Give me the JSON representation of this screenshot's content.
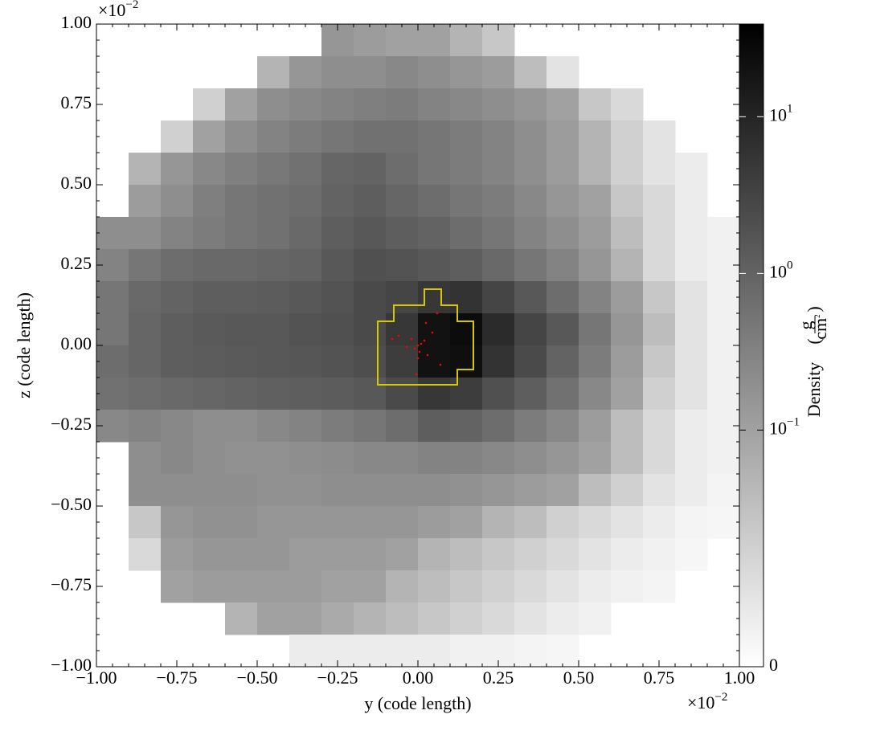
{
  "chart_data": {
    "type": "heatmap",
    "xlabel": "y  (code length)",
    "ylabel": "z  (code length)",
    "x_offset": "×10",
    "x_offset_exp": "−2",
    "y_offset": "×10",
    "y_offset_exp": "−2",
    "xlim": [
      -1,
      1
    ],
    "ylim": [
      -1,
      1
    ],
    "xticks": [
      {
        "value": -1,
        "label": "−1.00"
      },
      {
        "value": -0.75,
        "label": "−0.75"
      },
      {
        "value": -0.5,
        "label": "−0.50"
      },
      {
        "value": -0.25,
        "label": "−0.25"
      },
      {
        "value": 0,
        "label": "0.00"
      },
      {
        "value": 0.25,
        "label": "0.25"
      },
      {
        "value": 0.5,
        "label": "0.50"
      },
      {
        "value": 0.75,
        "label": "0.75"
      },
      {
        "value": 1,
        "label": "1.00"
      }
    ],
    "yticks": [
      {
        "value": -1,
        "label": "−1.00"
      },
      {
        "value": -0.75,
        "label": "−0.75"
      },
      {
        "value": -0.5,
        "label": "−0.50"
      },
      {
        "value": -0.25,
        "label": "−0.25"
      },
      {
        "value": 0,
        "label": "0.00"
      },
      {
        "value": 0.25,
        "label": "0.25"
      },
      {
        "value": 0.5,
        "label": "0.50"
      },
      {
        "value": 0.75,
        "label": "0.75"
      },
      {
        "value": 1,
        "label": "1.00"
      }
    ],
    "minor_tick_step": 0.05,
    "x": [
      -0.95,
      -0.85,
      -0.75,
      -0.65,
      -0.55,
      -0.45,
      -0.35,
      -0.25,
      -0.15,
      -0.05,
      0.05,
      0.15,
      0.25,
      0.35,
      0.45,
      0.55,
      0.65,
      0.75,
      0.85,
      0.95
    ],
    "y": [
      0.95,
      0.85,
      0.75,
      0.65,
      0.55,
      0.45,
      0.35,
      0.25,
      0.15,
      0.05,
      -0.05,
      -0.15,
      -0.25,
      -0.35,
      -0.45,
      -0.55,
      -0.65,
      -0.75,
      -0.85,
      -0.95
    ],
    "z_values": [
      [
        null,
        null,
        null,
        null,
        null,
        null,
        null,
        0.15,
        0.12,
        0.1,
        0.1,
        0.08,
        0.06,
        null,
        null,
        null,
        null,
        null,
        null,
        null
      ],
      [
        null,
        null,
        null,
        null,
        null,
        0.08,
        0.15,
        0.2,
        0.2,
        0.25,
        0.2,
        0.15,
        0.12,
        0.07,
        0.03,
        null,
        null,
        null,
        null,
        null
      ],
      [
        null,
        null,
        null,
        0.05,
        0.1,
        0.2,
        0.25,
        0.3,
        0.35,
        0.4,
        0.3,
        0.25,
        0.2,
        0.15,
        0.1,
        0.06,
        0.04,
        null,
        null,
        null
      ],
      [
        null,
        null,
        0.05,
        0.1,
        0.2,
        0.3,
        0.4,
        0.5,
        0.6,
        0.6,
        0.5,
        0.4,
        0.3,
        0.2,
        0.12,
        0.08,
        0.05,
        0.03,
        null,
        null
      ],
      [
        null,
        0.08,
        0.15,
        0.25,
        0.35,
        0.45,
        0.6,
        0.9,
        1.0,
        0.7,
        0.5,
        0.4,
        0.3,
        0.2,
        0.12,
        0.08,
        0.05,
        0.03,
        0.02,
        null
      ],
      [
        null,
        0.12,
        0.2,
        0.35,
        0.5,
        0.6,
        0.7,
        1.0,
        1.2,
        0.9,
        0.7,
        0.5,
        0.4,
        0.25,
        0.15,
        0.1,
        0.06,
        0.04,
        0.02,
        null
      ],
      [
        0.2,
        0.2,
        0.3,
        0.4,
        0.5,
        0.6,
        0.8,
        1.2,
        1.5,
        1.2,
        1.0,
        0.7,
        0.5,
        0.3,
        0.2,
        0.12,
        0.07,
        0.04,
        0.02,
        0.015
      ],
      [
        0.3,
        0.5,
        0.7,
        0.8,
        0.8,
        0.9,
        1.0,
        1.5,
        2.0,
        1.8,
        1.5,
        1.2,
        0.8,
        0.5,
        0.3,
        0.15,
        0.08,
        0.04,
        0.02,
        0.015
      ],
      [
        0.5,
        0.8,
        1.0,
        1.2,
        1.2,
        1.3,
        1.5,
        1.8,
        2.5,
        3,
        5,
        6,
        3,
        1.5,
        0.7,
        0.3,
        0.12,
        0.06,
        0.03,
        0.015
      ],
      [
        0.5,
        0.9,
        1.2,
        1.4,
        1.5,
        1.5,
        1.8,
        2,
        2.5,
        5,
        20,
        25,
        8,
        3,
        1.5,
        0.5,
        0.15,
        0.07,
        0.03,
        0.015
      ],
      [
        0.7,
        0.9,
        1.2,
        1.3,
        1.4,
        1.5,
        1.6,
        1.8,
        2.2,
        4,
        20,
        22,
        6,
        2.5,
        1.0,
        0.4,
        0.12,
        0.06,
        0.03,
        0.015
      ],
      [
        0.6,
        0.7,
        0.8,
        0.9,
        1.0,
        1.1,
        1.2,
        1.3,
        1.5,
        2.5,
        5,
        4,
        2.0,
        1.2,
        0.6,
        0.25,
        0.1,
        0.05,
        0.03,
        0.015
      ],
      [
        0.25,
        0.3,
        0.25,
        0.2,
        0.2,
        0.25,
        0.3,
        0.4,
        0.5,
        0.7,
        1.2,
        1.0,
        0.7,
        0.4,
        0.25,
        0.12,
        0.07,
        0.04,
        0.02,
        0.015
      ],
      [
        null,
        0.2,
        0.25,
        0.2,
        0.18,
        0.18,
        0.2,
        0.22,
        0.25,
        0.25,
        0.3,
        0.3,
        0.25,
        0.2,
        0.15,
        0.1,
        0.07,
        0.04,
        0.02,
        0.015
      ],
      [
        null,
        0.2,
        0.2,
        0.2,
        0.2,
        0.18,
        0.18,
        0.2,
        0.2,
        0.2,
        0.2,
        0.18,
        0.15,
        0.12,
        0.1,
        0.07,
        0.05,
        0.03,
        0.02,
        0.012
      ],
      [
        null,
        0.06,
        0.15,
        0.18,
        0.18,
        0.15,
        0.15,
        0.15,
        0.15,
        0.15,
        0.12,
        0.1,
        0.08,
        0.07,
        0.05,
        0.04,
        0.03,
        0.02,
        0.012,
        0.01
      ],
      [
        null,
        0.04,
        0.12,
        0.15,
        0.15,
        0.15,
        0.12,
        0.12,
        0.12,
        0.1,
        0.08,
        0.07,
        0.06,
        0.05,
        0.04,
        0.03,
        0.02,
        0.015,
        0.01,
        null
      ],
      [
        null,
        null,
        0.1,
        0.12,
        0.12,
        0.12,
        0.12,
        0.1,
        0.1,
        0.08,
        0.07,
        0.06,
        0.05,
        0.04,
        0.03,
        0.02,
        0.015,
        0.012,
        null,
        null
      ],
      [
        null,
        null,
        null,
        null,
        0.08,
        0.1,
        0.1,
        0.09,
        0.08,
        0.07,
        0.06,
        0.05,
        0.04,
        0.03,
        0.02,
        0.015,
        null,
        null,
        null,
        null
      ],
      [
        null,
        null,
        null,
        null,
        null,
        null,
        0.02,
        0.02,
        0.02,
        0.02,
        0.02,
        0.015,
        0.015,
        0.012,
        0.01,
        null,
        null,
        null,
        null,
        null
      ]
    ],
    "colorbar": {
      "label": "Density",
      "unit_num": "g",
      "unit_den": "cm",
      "unit_exp": "2",
      "scale": "symlog",
      "clim": [
        0,
        39
      ],
      "linthresh": 0.1,
      "linscale": 1.51,
      "cmap": "gray_r",
      "ticks": [
        0,
        {
          "value": 0.1,
          "label": "10",
          "exp": "−1"
        },
        {
          "value": 1,
          "label": "10",
          "exp": "0"
        },
        {
          "value": 10,
          "label": "10",
          "exp": "1"
        }
      ]
    },
    "contour": {
      "color": "#d4c800",
      "y": [
        -0.125,
        -0.075,
        -0.075,
        0.02,
        0.02,
        0.0725,
        0.0725,
        0.1225,
        0.1225,
        0.1725,
        0.1725,
        0.1225,
        0.1225,
        -0.125
      ],
      "z": [
        0.075,
        0.075,
        0.125,
        0.125,
        0.175,
        0.175,
        0.125,
        0.125,
        0.075,
        0.075,
        -0.075,
        -0.075,
        -0.1225,
        -0.1225
      ]
    },
    "particles": {
      "color": "#ff0000",
      "y": [
        0.0,
        0.01,
        -0.01,
        0.02,
        -0.02,
        0.005,
        0.03,
        -0.035,
        0.045,
        -0.06,
        0.07,
        -0.08,
        0.025,
        -0.005,
        0.06,
        0.0
      ],
      "z": [
        0.0,
        0.005,
        -0.01,
        0.015,
        0.02,
        -0.02,
        -0.03,
        -0.005,
        0.04,
        0.03,
        -0.06,
        0.02,
        0.07,
        -0.09,
        0.1,
        -0.04
      ]
    }
  }
}
